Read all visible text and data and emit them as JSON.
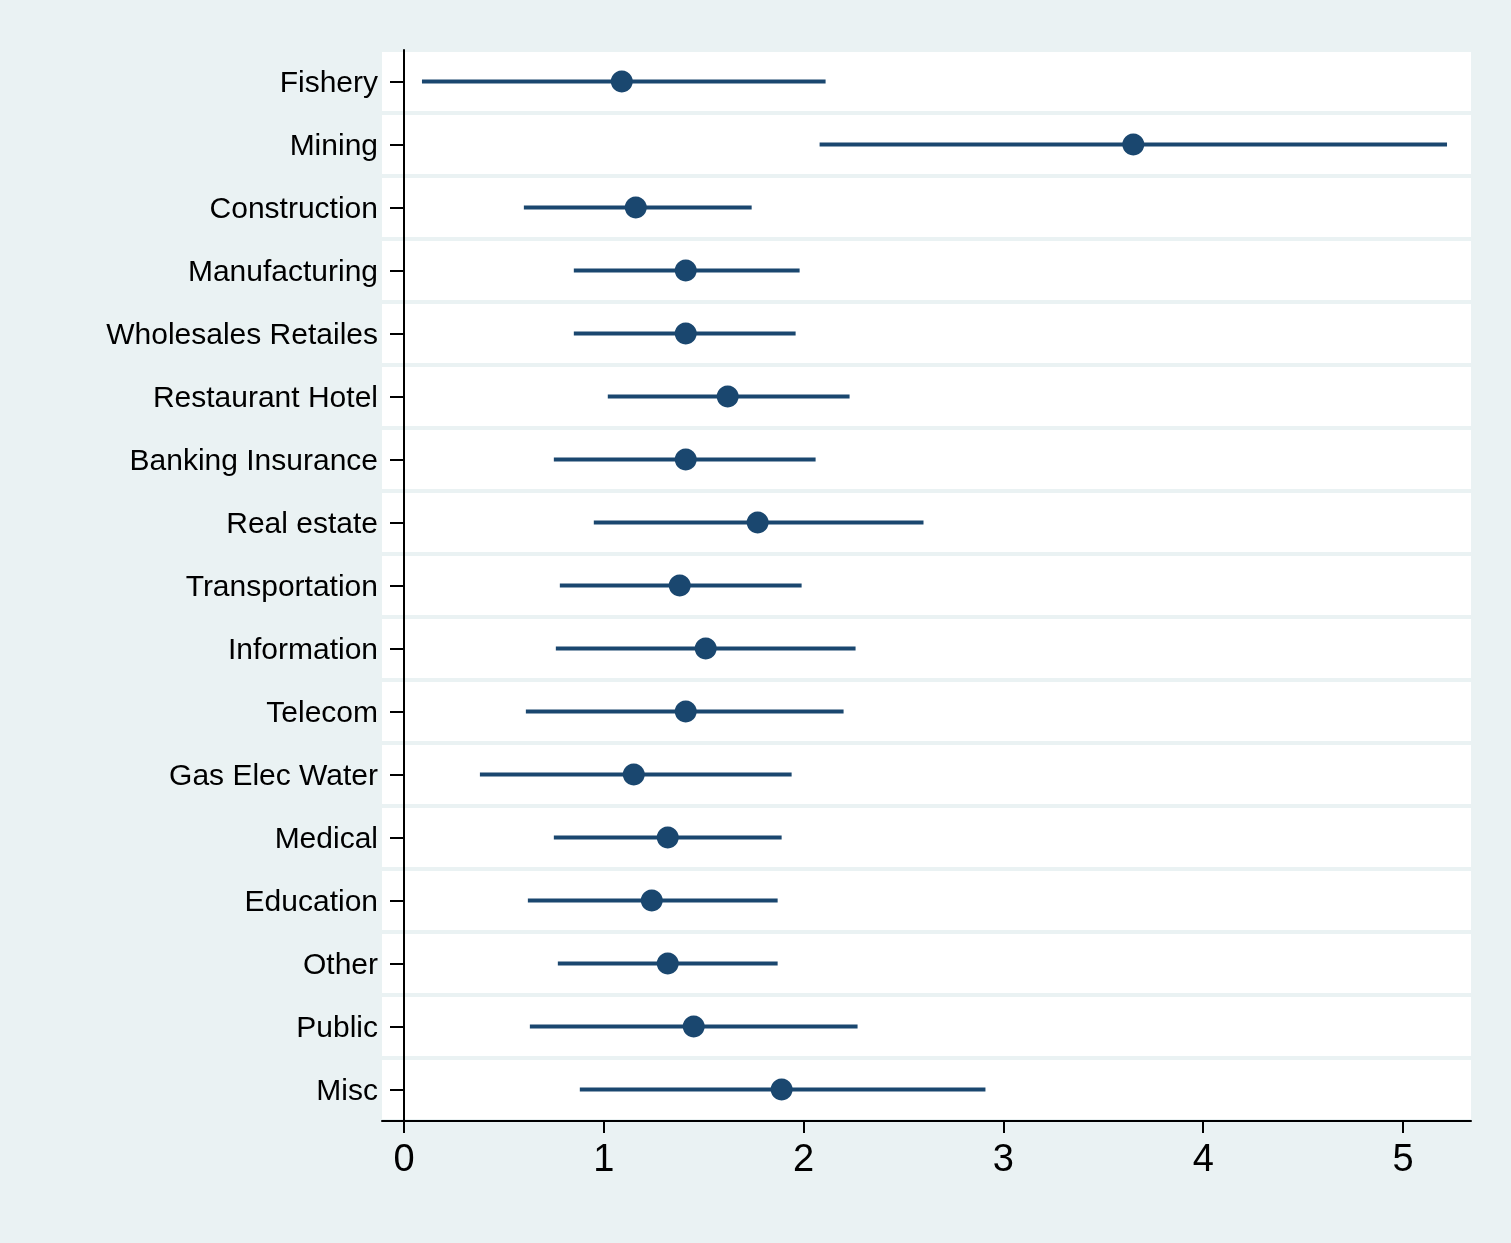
{
  "chart_data": {
    "type": "scatter",
    "orientation": "horizontal",
    "categories": [
      "Fishery",
      "Mining",
      "Construction",
      "Manufacturing",
      "Wholesales Retailes",
      "Restaurant Hotel",
      "Banking Insurance",
      "Real estate",
      "Transportation",
      "Information",
      "Telecom",
      "Gas Elec Water",
      "Medical",
      "Education",
      "Other",
      "Public",
      "Misc"
    ],
    "series": [
      {
        "color": "#1a476f",
        "values": [
          1.09,
          3.65,
          1.16,
          1.41,
          1.41,
          1.62,
          1.41,
          1.77,
          1.38,
          1.51,
          1.41,
          1.15,
          1.32,
          1.24,
          1.32,
          1.45,
          1.89
        ],
        "errors": [
          [
            0.09,
            2.11
          ],
          [
            2.08,
            5.22
          ],
          [
            0.6,
            1.74
          ],
          [
            0.85,
            1.98
          ],
          [
            0.85,
            1.96
          ],
          [
            1.02,
            2.23
          ],
          [
            0.75,
            2.06
          ],
          [
            0.95,
            2.6
          ],
          [
            0.78,
            1.99
          ],
          [
            0.76,
            2.26
          ],
          [
            0.61,
            2.2
          ],
          [
            0.38,
            1.94
          ],
          [
            0.75,
            1.89
          ],
          [
            0.62,
            1.87
          ],
          [
            0.77,
            1.87
          ],
          [
            0.63,
            2.27
          ],
          [
            0.88,
            2.91
          ]
        ]
      }
    ],
    "xlim": [
      -0.11,
      5.34
    ],
    "xticks": [
      0,
      1,
      2,
      3,
      4,
      5
    ],
    "grid": "y",
    "marker": "circle"
  }
}
